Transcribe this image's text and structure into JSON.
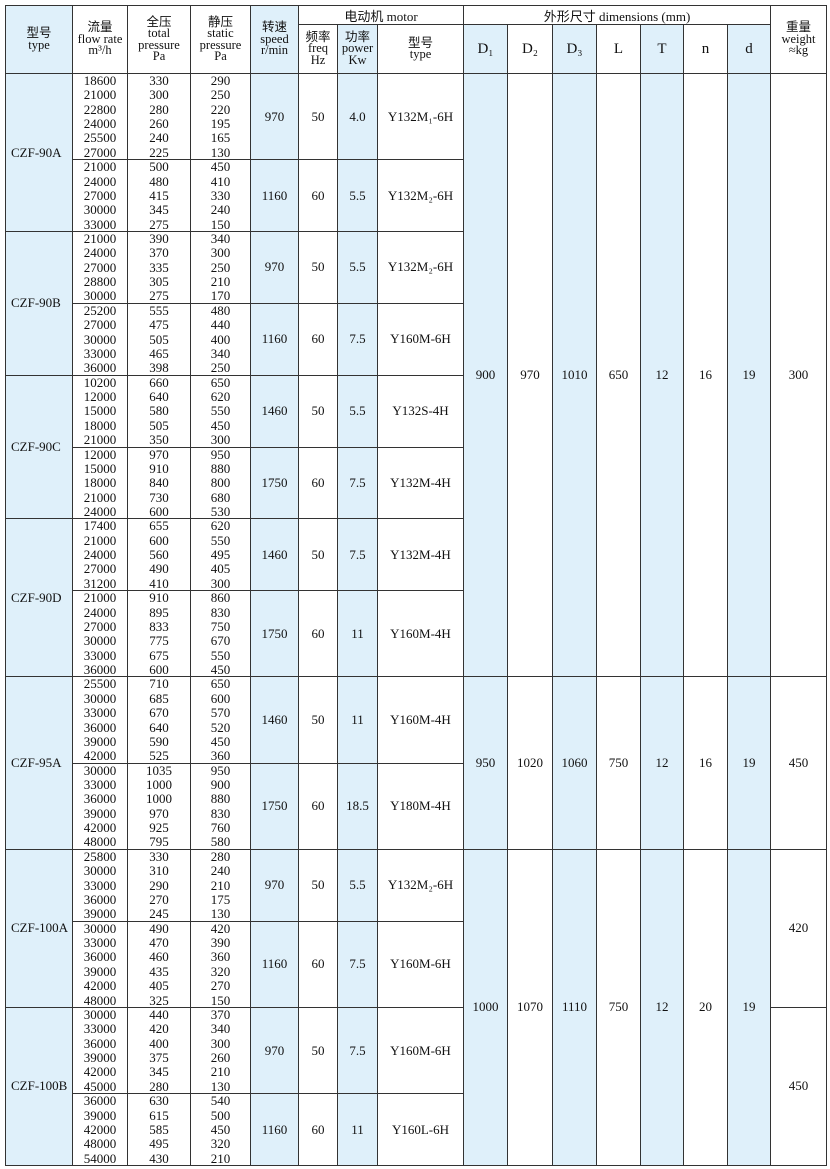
{
  "table": {
    "header": {
      "type": [
        "型号",
        "type"
      ],
      "flow": [
        "流量",
        "flow rate",
        "m³/h"
      ],
      "total": [
        "全压",
        "total",
        "pressure",
        "Pa"
      ],
      "static": [
        "静压",
        "static",
        "pressure",
        "Pa"
      ],
      "speed": [
        "转速",
        "speed",
        "r/min"
      ],
      "motor": "电动机  motor",
      "freq": [
        "频率",
        "freq",
        "Hz"
      ],
      "power": [
        "功率",
        "power",
        "Kw"
      ],
      "motor_type": [
        "型号",
        "type"
      ],
      "dimensions": "外形尺寸   dimensions (mm)",
      "dims": [
        "D₁",
        "D₂",
        "D₃",
        "L",
        "T",
        "n",
        "d"
      ],
      "weight": [
        "重量",
        "weight",
        "≈kg"
      ]
    },
    "groups": [
      {
        "D1": 900,
        "D2": 970,
        "D3": 1010,
        "L": 650,
        "T": 12,
        "n": 16,
        "d": 19,
        "sections": [
          {
            "weight": 300,
            "models": [
              {
                "type": "CZF-90A",
                "blocks": [
                  {
                    "flow": [
                      18600,
                      21000,
                      22800,
                      24000,
                      25500,
                      27000
                    ],
                    "total": [
                      330,
                      300,
                      280,
                      260,
                      240,
                      225
                    ],
                    "static": [
                      290,
                      250,
                      220,
                      195,
                      165,
                      130
                    ],
                    "speed": 970,
                    "freq": 50,
                    "power": "4.0",
                    "motor_type": "Y132M₁-6H"
                  },
                  {
                    "flow": [
                      21000,
                      24000,
                      27000,
                      30000,
                      33000
                    ],
                    "total": [
                      500,
                      480,
                      415,
                      345,
                      275
                    ],
                    "static": [
                      450,
                      410,
                      330,
                      240,
                      150
                    ],
                    "speed": 1160,
                    "freq": 60,
                    "power": "5.5",
                    "motor_type": "Y132M₂-6H"
                  }
                ]
              },
              {
                "type": "CZF-90B",
                "blocks": [
                  {
                    "flow": [
                      21000,
                      24000,
                      27000,
                      28800,
                      30000
                    ],
                    "total": [
                      390,
                      370,
                      335,
                      305,
                      275
                    ],
                    "static": [
                      340,
                      300,
                      250,
                      210,
                      170
                    ],
                    "speed": 970,
                    "freq": 50,
                    "power": "5.5",
                    "motor_type": "Y132M₂-6H"
                  },
                  {
                    "flow": [
                      25200,
                      27000,
                      30000,
                      33000,
                      36000
                    ],
                    "total": [
                      555,
                      475,
                      505,
                      465,
                      398
                    ],
                    "static": [
                      480,
                      440,
                      400,
                      340,
                      250
                    ],
                    "speed": 1160,
                    "freq": 60,
                    "power": "7.5",
                    "motor_type": "Y160M-6H"
                  }
                ]
              },
              {
                "type": "CZF-90C",
                "blocks": [
                  {
                    "flow": [
                      10200,
                      12000,
                      15000,
                      18000,
                      21000
                    ],
                    "total": [
                      660,
                      640,
                      580,
                      505,
                      350
                    ],
                    "static": [
                      650,
                      620,
                      550,
                      450,
                      300
                    ],
                    "speed": 1460,
                    "freq": 50,
                    "power": "5.5",
                    "motor_type": "Y132S-4H"
                  },
                  {
                    "flow": [
                      12000,
                      15000,
                      18000,
                      21000,
                      24000
                    ],
                    "total": [
                      970,
                      910,
                      840,
                      730,
                      600
                    ],
                    "static": [
                      950,
                      880,
                      800,
                      680,
                      530
                    ],
                    "speed": 1750,
                    "freq": 60,
                    "power": "7.5",
                    "motor_type": "Y132M-4H"
                  }
                ]
              },
              {
                "type": "CZF-90D",
                "blocks": [
                  {
                    "flow": [
                      17400,
                      21000,
                      24000,
                      27000,
                      31200
                    ],
                    "total": [
                      655,
                      600,
                      560,
                      490,
                      410
                    ],
                    "static": [
                      620,
                      550,
                      495,
                      405,
                      300
                    ],
                    "speed": 1460,
                    "freq": 50,
                    "power": "7.5",
                    "motor_type": "Y132M-4H"
                  },
                  {
                    "flow": [
                      21000,
                      24000,
                      27000,
                      30000,
                      33000,
                      36000
                    ],
                    "total": [
                      910,
                      895,
                      833,
                      775,
                      675,
                      600
                    ],
                    "static": [
                      860,
                      830,
                      750,
                      670,
                      550,
                      450
                    ],
                    "speed": 1750,
                    "freq": 60,
                    "power": "11",
                    "motor_type": "Y160M-4H"
                  }
                ]
              }
            ]
          }
        ]
      },
      {
        "D1": 950,
        "D2": 1020,
        "D3": 1060,
        "L": 750,
        "T": 12,
        "n": 16,
        "d": 19,
        "sections": [
          {
            "weight": 450,
            "models": [
              {
                "type": "CZF-95A",
                "blocks": [
                  {
                    "flow": [
                      25500,
                      30000,
                      33000,
                      36000,
                      39000,
                      42000
                    ],
                    "total": [
                      710,
                      685,
                      670,
                      640,
                      590,
                      525
                    ],
                    "static": [
                      650,
                      600,
                      570,
                      520,
                      450,
                      360
                    ],
                    "speed": 1460,
                    "freq": 50,
                    "power": "11",
                    "motor_type": "Y160M-4H"
                  },
                  {
                    "flow": [
                      30000,
                      33000,
                      36000,
                      39000,
                      42000,
                      48000
                    ],
                    "total": [
                      1035,
                      1000,
                      1000,
                      970,
                      925,
                      795
                    ],
                    "static": [
                      950,
                      900,
                      880,
                      830,
                      760,
                      580
                    ],
                    "speed": 1750,
                    "freq": 60,
                    "power": "18.5",
                    "motor_type": "Y180M-4H"
                  }
                ]
              }
            ]
          }
        ]
      },
      {
        "D1": 1000,
        "D2": 1070,
        "D3": 1110,
        "L": 750,
        "T": 12,
        "n": 20,
        "d": 19,
        "sections": [
          {
            "weight": 420,
            "models": [
              {
                "type": "CZF-100A",
                "blocks": [
                  {
                    "flow": [
                      25800,
                      30000,
                      33000,
                      36000,
                      39000
                    ],
                    "total": [
                      330,
                      310,
                      290,
                      270,
                      245
                    ],
                    "static": [
                      280,
                      240,
                      210,
                      175,
                      130
                    ],
                    "speed": 970,
                    "freq": 50,
                    "power": "5.5",
                    "motor_type": "Y132M₂-6H"
                  },
                  {
                    "flow": [
                      30000,
                      33000,
                      36000,
                      39000,
                      42000,
                      48000
                    ],
                    "total": [
                      490,
                      470,
                      460,
                      435,
                      405,
                      325
                    ],
                    "static": [
                      420,
                      390,
                      360,
                      320,
                      270,
                      150
                    ],
                    "speed": 1160,
                    "freq": 60,
                    "power": "7.5",
                    "motor_type": "Y160M-6H"
                  }
                ]
              }
            ]
          },
          {
            "weight": 450,
            "models": [
              {
                "type": "CZF-100B",
                "blocks": [
                  {
                    "flow": [
                      30000,
                      33000,
                      36000,
                      39000,
                      42000,
                      45000
                    ],
                    "total": [
                      440,
                      420,
                      400,
                      375,
                      345,
                      280
                    ],
                    "static": [
                      370,
                      340,
                      300,
                      260,
                      210,
                      130
                    ],
                    "speed": 970,
                    "freq": 50,
                    "power": "7.5",
                    "motor_type": "Y160M-6H"
                  },
                  {
                    "flow": [
                      36000,
                      39000,
                      42000,
                      48000,
                      54000
                    ],
                    "total": [
                      630,
                      615,
                      585,
                      495,
                      430
                    ],
                    "static": [
                      540,
                      500,
                      450,
                      320,
                      210
                    ],
                    "speed": 1160,
                    "freq": 60,
                    "power": "11",
                    "motor_type": "Y160L-6H"
                  }
                ]
              }
            ]
          }
        ]
      }
    ]
  }
}
